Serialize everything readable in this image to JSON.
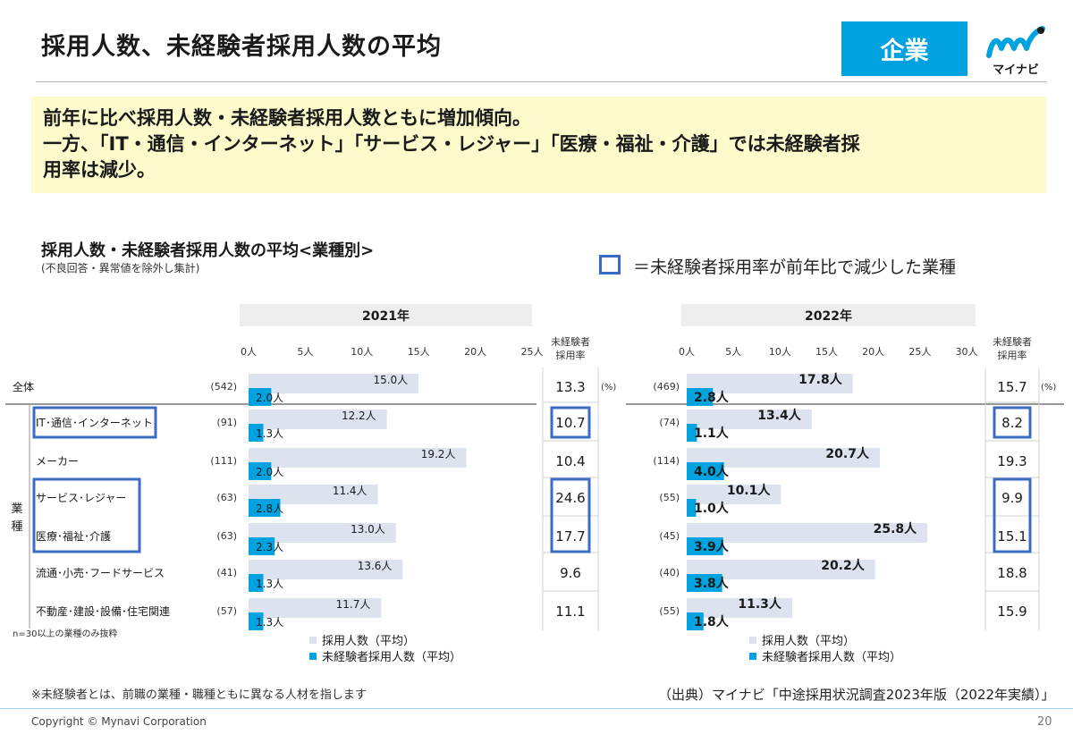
{
  "header": {
    "title": "採用人数、未経験者採用人数の平均",
    "badge": "企業",
    "logo_text": "マイナビ"
  },
  "summary": {
    "line1": "前年に比べ採用人数・未経験者採用人数ともに増加傾向。",
    "line2": "一方、「IT・通信・インターネット」「サービス・レジャー」「医療・福祉・介護」では未経験者採",
    "line3": "用率は減少。"
  },
  "chart_heading": {
    "title": "採用人数・未経験者採用人数の平均<業種別>",
    "subtitle": "(不良回答・異常値を除外し集計)",
    "box_legend": "＝未経験者採用率が前年比で減少した業種"
  },
  "chart_data": {
    "type": "bar",
    "orientation": "horizontal",
    "category_group_label": "業種",
    "categories": [
      "全体",
      "IT･通信･インターネット",
      "メーカー",
      "サービス･レジャー",
      "医療･福祉･介護",
      "流通･小売･フードサービス",
      "不動産･建設･設備･住宅関連"
    ],
    "rate_header": "未経験者採用率",
    "rate_unit": "(%)",
    "legend": [
      "採用人数（平均）",
      "未経験者採用人数（平均）"
    ],
    "colors": {
      "hires": "#dce3ef",
      "inexperienced": "#00a3e0",
      "highlight_box": "#3b6cc3",
      "header_bg": "#eeeeee"
    },
    "n_note": "n=30以上の業種のみ抜粋",
    "panels": [
      {
        "year": "2021年",
        "xlim": [
          0,
          25
        ],
        "ticks": [
          "0人",
          "5人",
          "10人",
          "15人",
          "20人",
          "25人"
        ],
        "n": [
          "(542)",
          "(91)",
          "(111)",
          "(63)",
          "(63)",
          "(41)",
          "(57)"
        ],
        "series": [
          {
            "name": "採用人数（平均）",
            "values": [
              15.0,
              12.2,
              19.2,
              11.4,
              13.0,
              13.6,
              11.7
            ],
            "labels": [
              "15.0人",
              "12.2人",
              "19.2人",
              "11.4人",
              "13.0人",
              "13.6人",
              "11.7人"
            ]
          },
          {
            "name": "未経験者採用人数（平均）",
            "values": [
              2.0,
              1.3,
              2.0,
              2.8,
              2.3,
              1.3,
              1.3
            ],
            "labels": [
              "2.0人",
              "1.3人",
              "2.0人",
              "2.8人",
              "2.3人",
              "1.3人",
              "1.3人"
            ]
          }
        ],
        "rates": [
          "13.3",
          "10.7",
          "10.4",
          "24.6",
          "17.7",
          "9.6",
          "11.1"
        ]
      },
      {
        "year": "2022年",
        "xlim": [
          0,
          30
        ],
        "ticks": [
          "0人",
          "5人",
          "10人",
          "15人",
          "20人",
          "25人",
          "30人"
        ],
        "n": [
          "(469)",
          "(74)",
          "(114)",
          "(55)",
          "(45)",
          "(40)",
          "(55)"
        ],
        "series": [
          {
            "name": "採用人数（平均）",
            "values": [
              17.8,
              13.4,
              20.7,
              10.1,
              25.8,
              20.2,
              11.3
            ],
            "labels": [
              "17.8人",
              "13.4人",
              "20.7人",
              "10.1人",
              "25.8人",
              "20.2人",
              "11.3人"
            ]
          },
          {
            "name": "未経験者採用人数（平均）",
            "values": [
              2.8,
              1.1,
              4.0,
              1.0,
              3.9,
              3.8,
              1.8
            ],
            "labels": [
              "2.8人",
              "1.1人",
              "4.0人",
              "1.0人",
              "3.9人",
              "3.8人",
              "1.8人"
            ]
          }
        ],
        "rates": [
          "15.7",
          "8.2",
          "19.3",
          "9.9",
          "15.1",
          "18.8",
          "15.9"
        ]
      }
    ],
    "highlighted_industries": [
      1,
      3,
      4
    ]
  },
  "footer": {
    "note": "※未経験者とは、前職の業種・職種ともに異なる人材を指します",
    "source": "（出典）マイナビ「中途採用状況調査2023年版（2022年実績）」",
    "copyright": "Copyright © Mynavi Corporation",
    "page": "20"
  }
}
